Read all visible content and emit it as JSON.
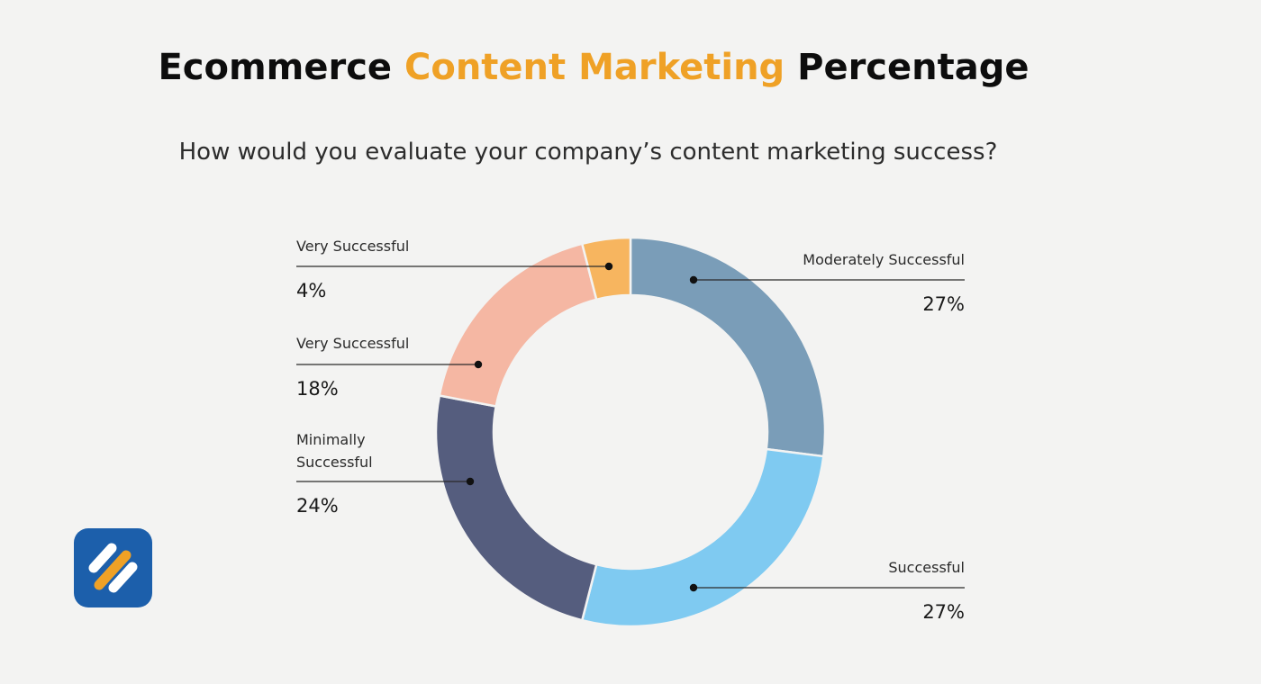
{
  "header": {
    "title_part1": "Ecommerce ",
    "title_part2": "Content Marketing",
    "title_part3": " Percentage",
    "subtitle": "How would you evaluate your company’s content marketing success?"
  },
  "logo": {
    "icon": "slanted-stripes-logo-icon",
    "bg_color": "#1c5fab",
    "stripe_color": "#ffffff",
    "accent_color": "#efa126"
  },
  "chart_data": {
    "type": "pie",
    "style": "donut",
    "title": "How would you evaluate your company’s content marketing success?",
    "slices": [
      {
        "label": "Moderately Successful",
        "value": 27,
        "display": "27%",
        "color": "#7a9db8"
      },
      {
        "label": "Successful",
        "value": 27,
        "display": "27%",
        "color": "#7fcaf1"
      },
      {
        "label": "Minimally Successful",
        "value": 24,
        "display": "24%",
        "color": "#555d7e"
      },
      {
        "label": "Very Successful",
        "value": 18,
        "display": "18%",
        "color": "#f5b7a3"
      },
      {
        "label": "Very Successful",
        "value": 4,
        "display": "4%",
        "color": "#f7b55f"
      }
    ]
  }
}
